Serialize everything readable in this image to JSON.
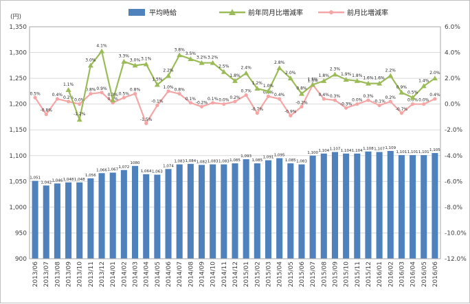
{
  "chart_data": {
    "type": "bar+line",
    "y_left_unit": "(円)",
    "y_left_ticks": [
      "900",
      "950",
      "1,000",
      "1,050",
      "1,100",
      "1,150",
      "1,200",
      "1,250",
      "1,300",
      "1,350"
    ],
    "y_left_range": [
      900,
      1350
    ],
    "y_right_ticks": [
      "6.0%",
      "4.0%",
      "2.0%",
      "0.0%",
      "-2.0%",
      "-4.0%",
      "-6.0%",
      "-8.0%",
      "-10.0%",
      "-12.0%"
    ],
    "y_right_range": [
      -12,
      6
    ],
    "categories": [
      "2013/06",
      "2013/07",
      "2013/08",
      "2013/09",
      "2013/10",
      "2013/11",
      "2013/12",
      "2014/01",
      "2014/02",
      "2014/03",
      "2014/04",
      "2014/05",
      "2014/06",
      "2014/07",
      "2014/08",
      "2014/09",
      "2014/10",
      "2014/11",
      "2014/12",
      "2015/01",
      "2015/02",
      "2015/03",
      "2015/04",
      "2015/05",
      "2015/06",
      "2015/07",
      "2015/08",
      "2015/09",
      "2015/10",
      "2015/11",
      "2015/12",
      "2016/01",
      "2016/02",
      "2016/03",
      "2016/04",
      "2016/05",
      "2016/06"
    ],
    "series": [
      {
        "name": "平均時給",
        "type": "bar",
        "axis": "left",
        "color": "#4f81bd",
        "values": [
          1051,
          1042,
          1046,
          1048,
          1048,
          1056,
          1066,
          1067,
          1072,
          1080,
          1064,
          1063,
          1074,
          1083,
          1084,
          1082,
          1083,
          1083,
          1085,
          1093,
          1085,
          1091,
          1095,
          1085,
          1083,
          1100,
          1104,
          1107,
          1104,
          1104,
          1108,
          1107,
          1109,
          1101,
          1101,
          1101,
          1105
        ],
        "labels": [
          "1,051",
          "1,042",
          "1,046",
          "1,048",
          "1,048",
          "1,056",
          "1,066",
          "1,067",
          "1,072",
          "1080",
          "1,064",
          "1,063",
          "1,074",
          "1,083",
          "1,084",
          "1,082",
          "1,083",
          "1,083",
          "1,085",
          "1,093",
          "1,085",
          "1,091",
          "1,095",
          "1,085",
          "1,083",
          "1,100",
          "1,104",
          "1,107",
          "1,104",
          "1,104",
          "1,108",
          "1,107",
          "1,109",
          "1,101",
          "1,101",
          "1,101",
          "1,105"
        ]
      },
      {
        "name": "前年同月比増減率",
        "type": "line",
        "axis": "right",
        "color": "#9bbb59",
        "values": [
          null,
          null,
          null,
          1.1,
          -1.2,
          3.0,
          4.1,
          0.3,
          3.3,
          3.0,
          3.1,
          1.5,
          2.2,
          3.8,
          3.5,
          3.2,
          3.2,
          2.5,
          1.8,
          2.4,
          1.2,
          1.0,
          2.8,
          2.0,
          0.8,
          1.5,
          1.8,
          2.3,
          1.9,
          1.8,
          1.6,
          1.6,
          2.2,
          0.9,
          0.5,
          1.4,
          2.0
        ],
        "labels": [
          "",
          "",
          "",
          "1.1%",
          "-1.2%",
          "3.0%",
          "4.1%",
          "0.3%",
          "3.3%",
          "3.0%",
          "3.1%",
          "1.5%",
          "2.2%",
          "3.8%",
          "3.5%",
          "3.2%",
          "3.2%",
          "2.5%",
          "1.8%",
          "2.4%",
          "1.2%",
          "1.0%",
          "2.8%",
          "2.0%",
          "0.8%",
          "1.5%",
          "1.8%",
          "2.3%",
          "1.9%",
          "1.8%",
          "1.6%",
          "1.6%",
          "2.2%",
          "0.9%",
          "0.5%",
          "1.4%",
          "2.0%"
        ]
      },
      {
        "name": "前月比増減率",
        "type": "line",
        "axis": "right",
        "color": "#f4a6a6",
        "values": [
          0.5,
          -0.8,
          0.4,
          0.2,
          0.0,
          0.8,
          0.9,
          0.1,
          0.5,
          0.8,
          -1.5,
          -0.1,
          1.0,
          0.8,
          0.1,
          -0.2,
          0.1,
          0.0,
          0.2,
          0.7,
          -0.7,
          0.6,
          0.4,
          -0.9,
          -0.2,
          1.5,
          0.4,
          0.3,
          -0.3,
          0.0,
          0.3,
          -0.1,
          0.2,
          -0.7,
          0.0,
          0.0,
          0.4
        ],
        "labels": [
          "0.5%",
          "-0.8%",
          "0.4%",
          "0.2%",
          "0.0%",
          "0.8%",
          "0.9%",
          "0.1%",
          "0.5%",
          "0.8%",
          "-1.5%",
          "-0.1%",
          "1.0%",
          "0.8%",
          "0.1%",
          "-0.2%",
          "0.1%",
          "0.0%",
          "0.2%",
          "0.7%",
          "-0.7%",
          "0.6%",
          "0.4%",
          "-0.9%",
          "-0.2%",
          "1.5%",
          "0.4%",
          "0.3%",
          "-0.3%",
          "0.0%",
          "0.3%",
          "-0.1%",
          "0.2%",
          "-0.7%",
          "0.0%",
          "0.0%",
          "0.4%"
        ]
      }
    ],
    "grid": true,
    "legend": "top"
  }
}
